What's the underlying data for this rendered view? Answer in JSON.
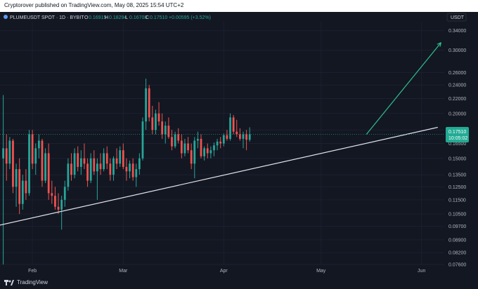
{
  "publish_line": "Cryptorover published on TradingView.com, May 08, 2025 15:54 UTC+2",
  "symbol_line": "PLUMEUSDT SPOT · 1D · BYBIT",
  "ohlc": {
    "o_label": "O",
    "o_value": "0.16915",
    "h_label": "H",
    "h_value": "0.18294",
    "l_label": "L",
    "l_value": "0.16708",
    "c_label": "C",
    "c_value": "0.17510",
    "change": "+0.00595 (+3.52%)"
  },
  "currency_label": "USDT",
  "price_tag": {
    "price": "0.17510",
    "countdown": "10:05:02"
  },
  "footer_brand": "TradingView",
  "colors": {
    "up": "#26a69a",
    "down": "#ef5350",
    "tag": "#22ab94",
    "trendline": "#e0e3eb",
    "arrow": "#2dc08d",
    "bg": "#131722"
  },
  "chart_data": {
    "type": "candlestick",
    "y_scale": "log",
    "ylim": [
      0.076,
      0.36
    ],
    "y_ticks": [
      "0.34000",
      "0.30000",
      "0.26000",
      "0.24000",
      "0.22000",
      "0.20000",
      "0.18000",
      "0.16500",
      "0.15000",
      "0.13500",
      "0.12500",
      "0.11500",
      "0.10500",
      "0.09700",
      "0.08900",
      "0.08200",
      "0.07600"
    ],
    "x_ticks": [
      "Feb",
      "Mar",
      "Apr",
      "May",
      "Jun"
    ],
    "x_domain": [
      "2025-01-22",
      "2025-06-08"
    ],
    "x_tick_dates": [
      "2025-02-01",
      "2025-03-01",
      "2025-04-01",
      "2025-05-01",
      "2025-06-01"
    ],
    "first_candle_date": "2025-01-23",
    "candles": [
      [
        0.15,
        0.225,
        0.076,
        0.16
      ],
      [
        0.16,
        0.175,
        0.13,
        0.145
      ],
      [
        0.145,
        0.172,
        0.14,
        0.168
      ],
      [
        0.168,
        0.17,
        0.12,
        0.125
      ],
      [
        0.125,
        0.145,
        0.11,
        0.14
      ],
      [
        0.14,
        0.15,
        0.105,
        0.112
      ],
      [
        0.112,
        0.135,
        0.108,
        0.13
      ],
      [
        0.13,
        0.14,
        0.115,
        0.12
      ],
      [
        0.12,
        0.18,
        0.118,
        0.175
      ],
      [
        0.175,
        0.18,
        0.14,
        0.145
      ],
      [
        0.145,
        0.165,
        0.135,
        0.16
      ],
      [
        0.16,
        0.175,
        0.15,
        0.168
      ],
      [
        0.168,
        0.17,
        0.125,
        0.13
      ],
      [
        0.13,
        0.16,
        0.128,
        0.155
      ],
      [
        0.155,
        0.165,
        0.115,
        0.12
      ],
      [
        0.12,
        0.13,
        0.112,
        0.118
      ],
      [
        0.118,
        0.125,
        0.108,
        0.11
      ],
      [
        0.11,
        0.12,
        0.105,
        0.108
      ],
      [
        0.108,
        0.118,
        0.095,
        0.115
      ],
      [
        0.115,
        0.13,
        0.11,
        0.125
      ],
      [
        0.125,
        0.15,
        0.122,
        0.145
      ],
      [
        0.145,
        0.155,
        0.13,
        0.135
      ],
      [
        0.135,
        0.16,
        0.132,
        0.155
      ],
      [
        0.155,
        0.162,
        0.138,
        0.142
      ],
      [
        0.142,
        0.158,
        0.135,
        0.15
      ],
      [
        0.15,
        0.165,
        0.14,
        0.145
      ],
      [
        0.145,
        0.15,
        0.125,
        0.13
      ],
      [
        0.13,
        0.155,
        0.128,
        0.15
      ],
      [
        0.15,
        0.158,
        0.135,
        0.138
      ],
      [
        0.138,
        0.15,
        0.115,
        0.145
      ],
      [
        0.145,
        0.155,
        0.135,
        0.14
      ],
      [
        0.14,
        0.16,
        0.138,
        0.155
      ],
      [
        0.155,
        0.162,
        0.14,
        0.145
      ],
      [
        0.145,
        0.15,
        0.13,
        0.135
      ],
      [
        0.135,
        0.152,
        0.13,
        0.15
      ],
      [
        0.15,
        0.16,
        0.14,
        0.145
      ],
      [
        0.145,
        0.162,
        0.142,
        0.158
      ],
      [
        0.158,
        0.165,
        0.14,
        0.142
      ],
      [
        0.142,
        0.15,
        0.13,
        0.138
      ],
      [
        0.138,
        0.148,
        0.132,
        0.145
      ],
      [
        0.145,
        0.15,
        0.13,
        0.133
      ],
      [
        0.133,
        0.145,
        0.125,
        0.14
      ],
      [
        0.14,
        0.155,
        0.135,
        0.15
      ],
      [
        0.15,
        0.195,
        0.148,
        0.19
      ],
      [
        0.19,
        0.25,
        0.18,
        0.235
      ],
      [
        0.235,
        0.24,
        0.19,
        0.195
      ],
      [
        0.195,
        0.21,
        0.175,
        0.18
      ],
      [
        0.18,
        0.205,
        0.175,
        0.2
      ],
      [
        0.2,
        0.215,
        0.185,
        0.19
      ],
      [
        0.19,
        0.2,
        0.17,
        0.175
      ],
      [
        0.175,
        0.19,
        0.165,
        0.185
      ],
      [
        0.185,
        0.195,
        0.17,
        0.172
      ],
      [
        0.172,
        0.18,
        0.158,
        0.162
      ],
      [
        0.162,
        0.178,
        0.16,
        0.175
      ],
      [
        0.175,
        0.182,
        0.165,
        0.168
      ],
      [
        0.168,
        0.175,
        0.15,
        0.155
      ],
      [
        0.155,
        0.17,
        0.152,
        0.165
      ],
      [
        0.165,
        0.172,
        0.155,
        0.158
      ],
      [
        0.158,
        0.165,
        0.14,
        0.145
      ],
      [
        0.145,
        0.172,
        0.132,
        0.168
      ],
      [
        0.168,
        0.178,
        0.16,
        0.17
      ],
      [
        0.17,
        0.175,
        0.15,
        0.152
      ],
      [
        0.152,
        0.162,
        0.148,
        0.16
      ],
      [
        0.16,
        0.165,
        0.15,
        0.155
      ],
      [
        0.155,
        0.162,
        0.15,
        0.158
      ],
      [
        0.158,
        0.166,
        0.152,
        0.163
      ],
      [
        0.163,
        0.17,
        0.158,
        0.167
      ],
      [
        0.167,
        0.172,
        0.16,
        0.165
      ],
      [
        0.165,
        0.176,
        0.162,
        0.174
      ],
      [
        0.174,
        0.18,
        0.168,
        0.17
      ],
      [
        0.17,
        0.2,
        0.168,
        0.195
      ],
      [
        0.195,
        0.198,
        0.175,
        0.178
      ],
      [
        0.178,
        0.192,
        0.172,
        0.175
      ],
      [
        0.175,
        0.182,
        0.168,
        0.17
      ],
      [
        0.17,
        0.178,
        0.16,
        0.175
      ],
      [
        0.175,
        0.18,
        0.158,
        0.169
      ],
      [
        0.169,
        0.183,
        0.167,
        0.175
      ]
    ],
    "trendline": [
      [
        "2025-01-18",
        0.096
      ],
      [
        "2025-06-06",
        0.183
      ]
    ],
    "projection_arrow": [
      [
        "2025-05-15",
        0.175
      ],
      [
        "2025-06-07",
        0.315
      ]
    ]
  }
}
